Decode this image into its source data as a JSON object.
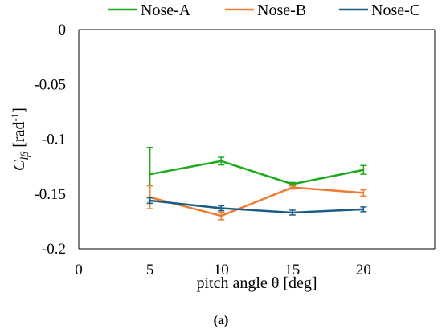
{
  "chart_data": {
    "type": "line",
    "x": [
      5,
      10,
      15,
      20
    ],
    "xlim": [
      0,
      25
    ],
    "ylim": [
      -0.2,
      0
    ],
    "xticks": [
      0,
      5,
      10,
      15,
      20
    ],
    "xtick_labels": [
      "0",
      "5",
      "10",
      "15",
      "20"
    ],
    "yticks": [
      0,
      -0.05,
      -0.1,
      -0.15,
      -0.2
    ],
    "ytick_labels": [
      "0",
      "-0.05",
      "-0.1",
      "-0.15",
      "-0.2"
    ],
    "xlabel": "pitch angle θ [deg]",
    "ylabel": {
      "main": "C",
      "subscript": "lβ",
      "unit_prefix": " [rad",
      "unit_sup": "-1",
      "unit_suffix": "]"
    },
    "grid": false,
    "legend_position": "top",
    "panel_label": "(a)",
    "series": [
      {
        "name": "Nose-A",
        "color": "#1aaa1a",
        "values": [
          -0.132,
          -0.12,
          -0.141,
          -0.128
        ],
        "err_low": [
          0.0245,
          0.0035,
          0.0015,
          0.004
        ],
        "err_high": [
          0.0245,
          0.0035,
          0.0015,
          0.004
        ]
      },
      {
        "name": "Nose-B",
        "color": "#f07a30",
        "values": [
          -0.153,
          -0.17,
          -0.144,
          -0.149
        ],
        "err_low": [
          0.0105,
          0.0035,
          0.0015,
          0.0028
        ],
        "err_high": [
          0.0105,
          0.0035,
          0.0015,
          0.0028
        ]
      },
      {
        "name": "Nose-C",
        "color": "#1a5c85",
        "values": [
          -0.156,
          -0.163,
          -0.167,
          -0.164
        ],
        "err_low": [
          0.0025,
          0.0022,
          0.0022,
          0.0022
        ],
        "err_high": [
          0.0025,
          0.0022,
          0.0022,
          0.0022
        ]
      }
    ]
  }
}
